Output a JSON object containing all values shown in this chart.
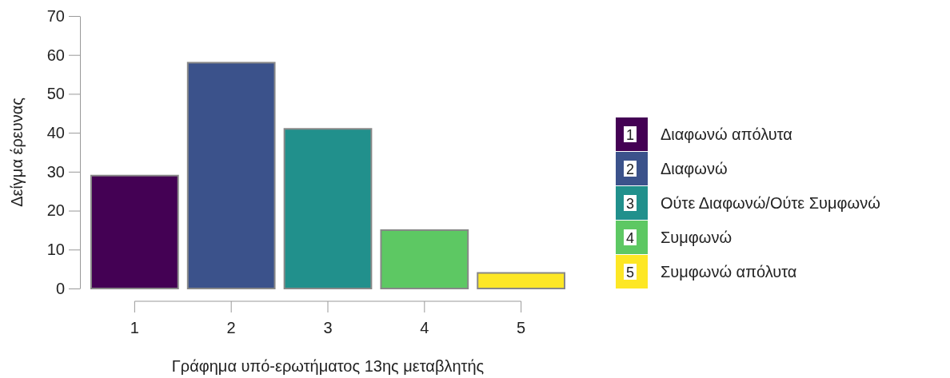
{
  "chart_data": {
    "type": "bar",
    "xlabel": "Γράφημα υπό-ερωτήματος 13ης μεταβλητής",
    "ylabel": "Δείγμα έρευνας",
    "categories": [
      "1",
      "2",
      "3",
      "4",
      "5"
    ],
    "series": [
      {
        "name": "Διαφωνώ απόλυτα",
        "color": "#440154",
        "values": [
          29,
          null,
          null,
          null,
          null
        ]
      },
      {
        "name": "Διαφωνώ",
        "color": "#3b528b",
        "values": [
          null,
          58,
          null,
          null,
          null
        ]
      },
      {
        "name": "Ούτε Διαφωνώ/Ούτε Συμφωνώ",
        "color": "#21908c",
        "values": [
          null,
          null,
          41,
          null,
          null
        ]
      },
      {
        "name": "Συμφωνώ",
        "color": "#5dc863",
        "values": [
          null,
          null,
          null,
          15,
          null
        ]
      },
      {
        "name": "Συμφωνώ απόλυτα",
        "color": "#fde725",
        "values": [
          null,
          null,
          null,
          null,
          4
        ]
      }
    ],
    "ylim": [
      0,
      70
    ],
    "yticks": [
      0,
      10,
      20,
      30,
      40,
      50,
      60,
      70
    ],
    "grid": false,
    "legend": "right"
  }
}
